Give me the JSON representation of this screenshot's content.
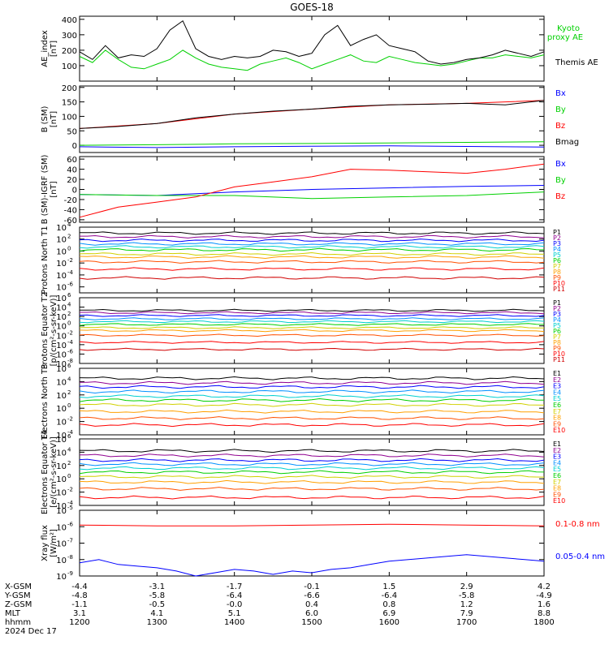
{
  "title": "GOES-18",
  "date": "2024 Dec 17",
  "chart_data": [
    {
      "type": "line",
      "ylabel": "AE_index [nT]",
      "ylim": [
        0,
        420
      ],
      "yticks": [
        "400",
        "300",
        "200",
        "100"
      ],
      "series": [
        {
          "name": "Kyoto proxy AE",
          "color": "#00d000",
          "x": [
            1200,
            1210,
            1220,
            1230,
            1240,
            1250,
            1300,
            1310,
            1320,
            1330,
            1340,
            1350,
            1400,
            1410,
            1420,
            1430,
            1440,
            1450,
            1500,
            1510,
            1520,
            1530,
            1540,
            1550,
            1600,
            1610,
            1620,
            1630,
            1640,
            1650,
            1700,
            1710,
            1720,
            1730,
            1740,
            1750,
            1800
          ],
          "values": [
            160,
            120,
            200,
            140,
            90,
            80,
            110,
            140,
            200,
            150,
            110,
            90,
            80,
            70,
            110,
            130,
            150,
            120,
            80,
            110,
            140,
            170,
            130,
            120,
            160,
            140,
            120,
            110,
            100,
            110,
            130,
            150,
            150,
            170,
            160,
            150,
            170
          ]
        },
        {
          "name": "Themis AE",
          "color": "#000000",
          "x": [
            1200,
            1210,
            1220,
            1230,
            1240,
            1250,
            1300,
            1310,
            1320,
            1330,
            1340,
            1350,
            1400,
            1410,
            1420,
            1430,
            1440,
            1450,
            1500,
            1510,
            1520,
            1530,
            1540,
            1550,
            1600,
            1610,
            1620,
            1630,
            1640,
            1650,
            1700,
            1710,
            1720,
            1730,
            1740,
            1750,
            1800
          ],
          "values": [
            190,
            140,
            230,
            150,
            170,
            160,
            210,
            330,
            390,
            210,
            160,
            140,
            160,
            150,
            160,
            200,
            190,
            160,
            180,
            300,
            360,
            230,
            270,
            300,
            230,
            210,
            190,
            130,
            110,
            120,
            140,
            150,
            170,
            200,
            180,
            160,
            190
          ]
        }
      ]
    },
    {
      "type": "line",
      "ylabel": "B (SM) [nT]",
      "ylim": [
        -25,
        205
      ],
      "yticks": [
        "200",
        "150",
        "100",
        "50",
        "0",
        "-50"
      ],
      "series": [
        {
          "name": "Bx",
          "color": "#0000ff",
          "x": [
            1200,
            1300,
            1400,
            1500,
            1600,
            1700,
            1800
          ],
          "values": [
            -5,
            -8,
            -5,
            -3,
            -2,
            -4,
            -6
          ]
        },
        {
          "name": "By",
          "color": "#00d000",
          "x": [
            1200,
            1300,
            1400,
            1500,
            1600,
            1700,
            1800
          ],
          "values": [
            0,
            2,
            5,
            6,
            8,
            10,
            12
          ]
        },
        {
          "name": "Bz",
          "color": "#ff0000",
          "x": [
            1200,
            1300,
            1400,
            1500,
            1600,
            1700,
            1800
          ],
          "values": [
            58,
            75,
            108,
            125,
            140,
            145,
            155
          ]
        },
        {
          "name": "Bmag",
          "color": "#000000",
          "x": [
            1200,
            1230,
            1300,
            1330,
            1400,
            1430,
            1500,
            1530,
            1600,
            1630,
            1700,
            1730,
            1800
          ],
          "values": [
            58,
            65,
            75,
            95,
            108,
            118,
            125,
            135,
            140,
            142,
            145,
            140,
            155
          ]
        }
      ]
    },
    {
      "type": "line",
      "ylabel": "B (SM)-IGRF (SM) [nT]",
      "ylim": [
        -65,
        65
      ],
      "yticks": [
        "60",
        "40",
        "20",
        "0",
        "-20",
        "-40",
        "-60"
      ],
      "series": [
        {
          "name": "Bx",
          "color": "#0000ff",
          "x": [
            1200,
            1300,
            1400,
            1500,
            1600,
            1700,
            1800
          ],
          "values": [
            -10,
            -12,
            -5,
            0,
            3,
            6,
            8
          ]
        },
        {
          "name": "By",
          "color": "#00d000",
          "x": [
            1200,
            1300,
            1400,
            1500,
            1600,
            1700,
            1800
          ],
          "values": [
            -10,
            -12,
            -12,
            -18,
            -15,
            -12,
            -5
          ]
        },
        {
          "name": "Bz",
          "color": "#ff0000",
          "x": [
            1200,
            1230,
            1300,
            1330,
            1400,
            1430,
            1500,
            1530,
            1600,
            1630,
            1700,
            1730,
            1800
          ],
          "values": [
            -55,
            -35,
            -25,
            -15,
            5,
            15,
            25,
            40,
            38,
            35,
            32,
            40,
            50
          ]
        }
      ]
    },
    {
      "type": "line",
      "ylabel": "Protons North T1",
      "log_scale": true,
      "ylim": [
        -7,
        4
      ],
      "yticks": [
        "10^4",
        "10^2",
        "10^0",
        "10^-2",
        "10^-4",
        "10^-6"
      ],
      "channels": [
        "P1",
        "P2",
        "P3",
        "P4",
        "P5",
        "P6",
        "P7",
        "P8",
        "P9",
        "P10",
        "P11"
      ],
      "levels": [
        3.0,
        2.4,
        1.8,
        1.2,
        0.7,
        0.2,
        -0.5,
        -1.0,
        -1.8,
        -3.0,
        -4.5
      ]
    },
    {
      "type": "line",
      "ylabel": "Protons Equator T2 [p/(cm²-s-sr-keV)]",
      "log_scale": true,
      "ylim": [
        -8,
        6
      ],
      "yticks": [
        "10^6",
        "10^4",
        "10^2",
        "10^0",
        "10^-2",
        "10^-4",
        "10^-6",
        "10^-8"
      ],
      "channels": [
        "P1",
        "P2",
        "P3",
        "P4",
        "P5",
        "P6",
        "P7",
        "P8",
        "P9",
        "P10",
        "P11"
      ],
      "levels": [
        3.3,
        2.8,
        2.2,
        1.5,
        0.9,
        0.3,
        -0.4,
        -1.0,
        -2.0,
        -3.5,
        -5.0
      ]
    },
    {
      "type": "line",
      "ylabel": "Electrons North T3",
      "log_scale": true,
      "ylim": [
        -4,
        6
      ],
      "yticks": [
        "10^6",
        "10^4",
        "10^2",
        "10^0",
        "10^-2",
        "10^-4"
      ],
      "channels": [
        "E1",
        "E2",
        "E3",
        "E4",
        "E5",
        "E6",
        "E7",
        "E8",
        "E9",
        "E10"
      ],
      "levels": [
        4.5,
        3.8,
        3.2,
        2.5,
        1.8,
        1.2,
        0.5,
        -0.5,
        -1.5,
        -2.5
      ]
    },
    {
      "type": "line",
      "ylabel": "Electrons Equator T4 [e/(cm²-s-sr-keV)]",
      "log_scale": true,
      "ylim": [
        -4,
        6
      ],
      "yticks": [
        "10^6",
        "10^4",
        "10^2",
        "10^0",
        "10^-2",
        "10^-4"
      ],
      "channels": [
        "E1",
        "E2",
        "E3",
        "E4",
        "E5",
        "E6",
        "E7",
        "E8",
        "E9",
        "E10"
      ],
      "levels": [
        4.2,
        3.5,
        2.8,
        2.2,
        1.6,
        1.0,
        0.3,
        -0.5,
        -1.5,
        -2.8
      ]
    },
    {
      "type": "line",
      "ylabel": "Xray flux [W/m²]",
      "log_scale": true,
      "ylim": [
        -9,
        -5
      ],
      "yticks": [
        "10^-5",
        "10^-6",
        "10^-7",
        "10^-8",
        "10^-9"
      ],
      "series": [
        {
          "name": "0.1-0.8 nm",
          "color": "#ff0000",
          "x": [
            1200,
            1300,
            1400,
            1500,
            1600,
            1700,
            1800
          ],
          "values": [
            -5.9,
            -5.95,
            -5.95,
            -5.9,
            -5.85,
            -5.9,
            -5.95
          ]
        },
        {
          "name": "0.05-0.4 nm",
          "color": "#0000ff",
          "x": [
            1200,
            1215,
            1230,
            1245,
            1300,
            1315,
            1330,
            1345,
            1400,
            1415,
            1430,
            1445,
            1500,
            1515,
            1530,
            1545,
            1600,
            1615,
            1630,
            1645,
            1700,
            1715,
            1730,
            1745,
            1800
          ],
          "values": [
            -8.2,
            -8.0,
            -8.3,
            -8.4,
            -8.5,
            -8.7,
            -9.0,
            -8.8,
            -8.6,
            -8.7,
            -8.9,
            -8.7,
            -8.8,
            -8.6,
            -8.5,
            -8.3,
            -8.1,
            -8.0,
            -7.9,
            -7.8,
            -7.7,
            -7.8,
            -7.9,
            -8.0,
            -8.1
          ]
        }
      ]
    }
  ],
  "legends": [
    [
      "Kyoto proxy AE",
      "Themis AE"
    ],
    [
      "Bx",
      "By",
      "Bz",
      "Bmag"
    ],
    [
      "Bx",
      "By",
      "Bz"
    ],
    [],
    [],
    [],
    [],
    [
      "0.1-0.8 nm",
      "0.05-0.4 nm"
    ]
  ],
  "x_axis": {
    "row_labels": [
      "X-GSM",
      "Y-GSM",
      "Z-GSM",
      "MLT",
      "hhmm"
    ],
    "ticks": [
      {
        "x": 1200,
        "vals": [
          "-4.4",
          "-4.8",
          "-1.1",
          "3.1",
          "1200"
        ]
      },
      {
        "x": 1300,
        "vals": [
          "-3.1",
          "-5.8",
          "-0.5",
          "4.1",
          "1300"
        ]
      },
      {
        "x": 1400,
        "vals": [
          "-1.7",
          "-6.4",
          "-0.0",
          "5.1",
          "1400"
        ]
      },
      {
        "x": 1500,
        "vals": [
          "-0.1",
          "-6.6",
          "0.4",
          "6.0",
          "1500"
        ]
      },
      {
        "x": 1600,
        "vals": [
          "1.5",
          "-6.4",
          "0.8",
          "6.9",
          "1600"
        ]
      },
      {
        "x": 1700,
        "vals": [
          "2.9",
          "-5.8",
          "1.2",
          "7.9",
          "1700"
        ]
      },
      {
        "x": 1800,
        "vals": [
          "4.2",
          "-4.9",
          "1.6",
          "8.8",
          "1800"
        ]
      }
    ]
  }
}
